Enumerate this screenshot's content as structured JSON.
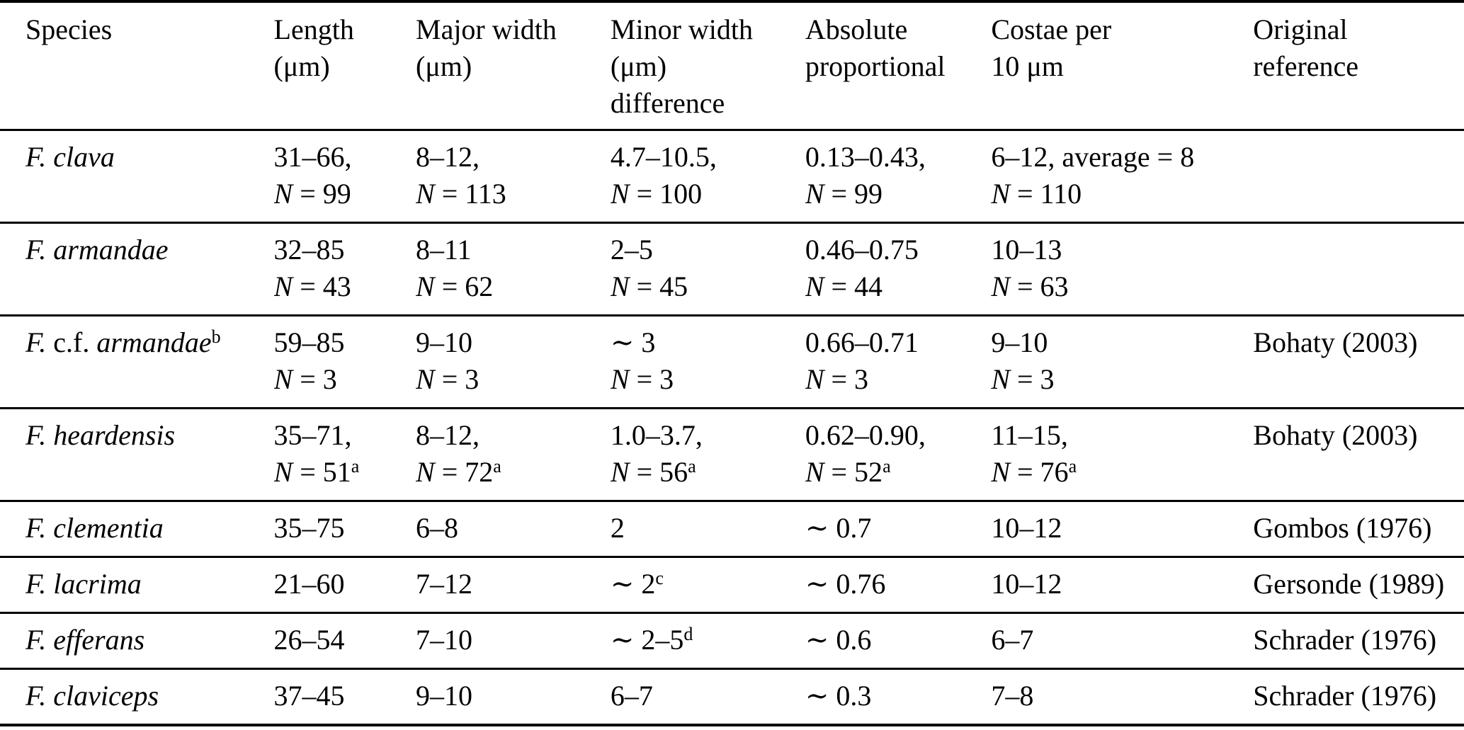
{
  "colors": {
    "background": "#ffffff",
    "text": "#000000",
    "rule": "#000000"
  },
  "table": {
    "columns": [
      {
        "key": "species",
        "label": "Species"
      },
      {
        "key": "length",
        "label": "Length\n(μm)"
      },
      {
        "key": "major-width",
        "label": "Major width\n(μm)"
      },
      {
        "key": "minor-width",
        "label": "Minor width\n(μm)\ndifference"
      },
      {
        "key": "absolute-proportional",
        "label": "Absolute\nproportional"
      },
      {
        "key": "costae",
        "label": "Costae per\n10 μm"
      },
      {
        "key": "original-reference",
        "label": "Original reference"
      }
    ],
    "rows": [
      {
        "cells": [
          [
            [
              {
                "t": "F. clava",
                "i": true
              }
            ]
          ],
          [
            [
              {
                "t": "31–66,"
              }
            ],
            [
              {
                "t": "N",
                "i": true
              },
              {
                "t": " = 99"
              }
            ]
          ],
          [
            [
              {
                "t": "8–12,"
              }
            ],
            [
              {
                "t": "N",
                "i": true
              },
              {
                "t": " = 113"
              }
            ]
          ],
          [
            [
              {
                "t": "4.7–10.5,"
              }
            ],
            [
              {
                "t": "N",
                "i": true
              },
              {
                "t": " = 100"
              }
            ]
          ],
          [
            [
              {
                "t": "0.13–0.43,"
              }
            ],
            [
              {
                "t": "N",
                "i": true
              },
              {
                "t": " = 99"
              }
            ]
          ],
          [
            [
              {
                "t": "6–12, average = 8"
              }
            ],
            [
              {
                "t": "N",
                "i": true
              },
              {
                "t": " = 110"
              }
            ]
          ],
          []
        ]
      },
      {
        "cells": [
          [
            [
              {
                "t": "F. armandae",
                "i": true
              }
            ]
          ],
          [
            [
              {
                "t": "32–85"
              }
            ],
            [
              {
                "t": "N",
                "i": true
              },
              {
                "t": " = 43"
              }
            ]
          ],
          [
            [
              {
                "t": "8–11"
              }
            ],
            [
              {
                "t": "N",
                "i": true
              },
              {
                "t": " = 62"
              }
            ]
          ],
          [
            [
              {
                "t": "2–5"
              }
            ],
            [
              {
                "t": "N",
                "i": true
              },
              {
                "t": " = 45"
              }
            ]
          ],
          [
            [
              {
                "t": "0.46–0.75"
              }
            ],
            [
              {
                "t": "N",
                "i": true
              },
              {
                "t": " = 44"
              }
            ]
          ],
          [
            [
              {
                "t": "10–13"
              }
            ],
            [
              {
                "t": "N",
                "i": true
              },
              {
                "t": " = 63"
              }
            ]
          ],
          []
        ]
      },
      {
        "cells": [
          [
            [
              {
                "t": "F.",
                "i": true
              },
              {
                "t": " c.f. "
              },
              {
                "t": "armandae",
                "i": true
              },
              {
                "t": "b",
                "s": true
              }
            ]
          ],
          [
            [
              {
                "t": "59–85"
              }
            ],
            [
              {
                "t": "N",
                "i": true
              },
              {
                "t": " = 3"
              }
            ]
          ],
          [
            [
              {
                "t": "9–10"
              }
            ],
            [
              {
                "t": "N",
                "i": true
              },
              {
                "t": " = 3"
              }
            ]
          ],
          [
            [
              {
                "t": "∼ 3"
              }
            ],
            [
              {
                "t": "N",
                "i": true
              },
              {
                "t": " = 3"
              }
            ]
          ],
          [
            [
              {
                "t": "0.66–0.71"
              }
            ],
            [
              {
                "t": "N",
                "i": true
              },
              {
                "t": " = 3"
              }
            ]
          ],
          [
            [
              {
                "t": "9–10"
              }
            ],
            [
              {
                "t": "N",
                "i": true
              },
              {
                "t": " = 3"
              }
            ]
          ],
          [
            [
              {
                "t": "Bohaty (2003)"
              }
            ]
          ]
        ]
      },
      {
        "cells": [
          [
            [
              {
                "t": "F. heardensis",
                "i": true
              }
            ]
          ],
          [
            [
              {
                "t": "35–71,"
              }
            ],
            [
              {
                "t": "N",
                "i": true
              },
              {
                "t": " = 51"
              },
              {
                "t": "a",
                "s": true
              }
            ]
          ],
          [
            [
              {
                "t": "8–12,"
              }
            ],
            [
              {
                "t": "N",
                "i": true
              },
              {
                "t": " = 72"
              },
              {
                "t": "a",
                "s": true
              }
            ]
          ],
          [
            [
              {
                "t": "1.0–3.7,"
              }
            ],
            [
              {
                "t": "N",
                "i": true
              },
              {
                "t": " = 56"
              },
              {
                "t": "a",
                "s": true
              }
            ]
          ],
          [
            [
              {
                "t": "0.62–0.90,"
              }
            ],
            [
              {
                "t": "N",
                "i": true
              },
              {
                "t": " = 52"
              },
              {
                "t": "a",
                "s": true
              }
            ]
          ],
          [
            [
              {
                "t": "11–15,"
              }
            ],
            [
              {
                "t": "N",
                "i": true
              },
              {
                "t": " = 76"
              },
              {
                "t": "a",
                "s": true
              }
            ]
          ],
          [
            [
              {
                "t": "Bohaty (2003)"
              }
            ]
          ]
        ]
      },
      {
        "cells": [
          [
            [
              {
                "t": "F. clementia",
                "i": true
              }
            ]
          ],
          [
            [
              {
                "t": "35–75"
              }
            ]
          ],
          [
            [
              {
                "t": "6–8"
              }
            ]
          ],
          [
            [
              {
                "t": "2"
              }
            ]
          ],
          [
            [
              {
                "t": "∼ 0.7"
              }
            ]
          ],
          [
            [
              {
                "t": "10–12"
              }
            ]
          ],
          [
            [
              {
                "t": "Gombos (1976)"
              }
            ]
          ]
        ]
      },
      {
        "cells": [
          [
            [
              {
                "t": "F. lacrima",
                "i": true
              }
            ]
          ],
          [
            [
              {
                "t": "21–60"
              }
            ]
          ],
          [
            [
              {
                "t": "7–12"
              }
            ]
          ],
          [
            [
              {
                "t": "∼ 2"
              },
              {
                "t": "c",
                "s": true
              }
            ]
          ],
          [
            [
              {
                "t": "∼ 0.76"
              }
            ]
          ],
          [
            [
              {
                "t": "10–12"
              }
            ]
          ],
          [
            [
              {
                "t": "Gersonde (1989)"
              }
            ]
          ]
        ]
      },
      {
        "cells": [
          [
            [
              {
                "t": "F. efferans",
                "i": true
              }
            ]
          ],
          [
            [
              {
                "t": "26–54"
              }
            ]
          ],
          [
            [
              {
                "t": "7–10"
              }
            ]
          ],
          [
            [
              {
                "t": "∼ 2–5"
              },
              {
                "t": "d",
                "s": true
              }
            ]
          ],
          [
            [
              {
                "t": "∼ 0.6"
              }
            ]
          ],
          [
            [
              {
                "t": "6–7"
              }
            ]
          ],
          [
            [
              {
                "t": "Schrader (1976)"
              }
            ]
          ]
        ]
      },
      {
        "cells": [
          [
            [
              {
                "t": "F. claviceps",
                "i": true
              }
            ]
          ],
          [
            [
              {
                "t": "37–45"
              }
            ]
          ],
          [
            [
              {
                "t": "9–10"
              }
            ]
          ],
          [
            [
              {
                "t": "6–7"
              }
            ]
          ],
          [
            [
              {
                "t": "∼ 0.3"
              }
            ]
          ],
          [
            [
              {
                "t": "7–8"
              }
            ]
          ],
          [
            [
              {
                "t": "Schrader (1976)"
              }
            ]
          ]
        ]
      }
    ]
  }
}
